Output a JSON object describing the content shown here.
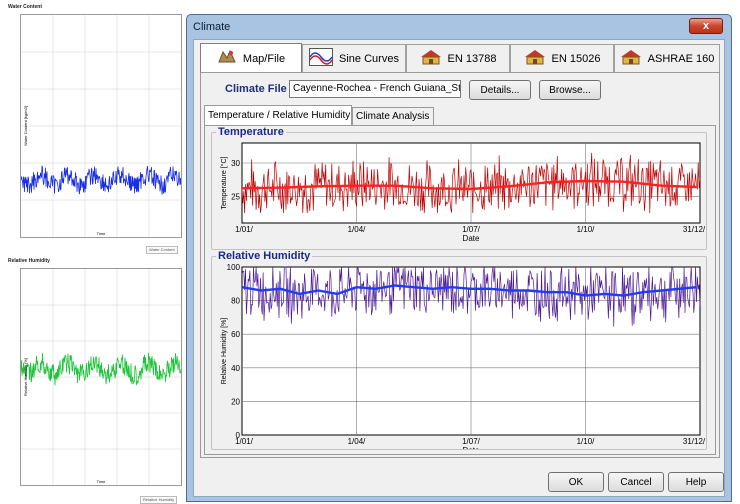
{
  "background_app": {
    "top_panel_title": "Water Content",
    "top_panel_ylabel": "Water Content [kg/m3]",
    "top_panel_xlabel": "Time",
    "top_panel_legend": "Water Content",
    "bottom_panel_title": "Relative Humidity",
    "bottom_panel_ylabel": "Relative Humidity [%]",
    "bottom_panel_xlabel": "Time",
    "bottom_panel_legend": "Relative Humidity",
    "colors": {
      "top_series": "#1a2ee6",
      "bottom_series": "#1ec43a"
    }
  },
  "dialog": {
    "title": "Climate",
    "close_label": "x",
    "tabs": [
      {
        "label": "Map/File",
        "icon": "map-icon",
        "active": true
      },
      {
        "label": "Sine Curves",
        "icon": "sine-curves-icon",
        "active": false
      },
      {
        "label": "EN 13788",
        "icon": "house-icon",
        "active": false
      },
      {
        "label": "EN 15026",
        "icon": "house-icon",
        "active": false
      },
      {
        "label": "ASHRAE 160",
        "icon": "house-icon",
        "active": false
      }
    ],
    "climate_file": {
      "label": "Climate File",
      "value": "Cayenne-Rochea - French Guiana_Stati",
      "details_button": "Details...",
      "browse_button": "Browse..."
    },
    "subtabs": [
      {
        "label": "Temperature / Relative Humidity",
        "active": true
      },
      {
        "label": "Climate Analysis",
        "active": false
      }
    ],
    "ok_button": "OK",
    "cancel_button": "Cancel",
    "help_button": "Help"
  },
  "chart_data": [
    {
      "type": "line",
      "title": "Temperature",
      "xlabel": "Date",
      "ylabel": "Temperature [°C]",
      "x_ticks": [
        "1/01/",
        "1/04/",
        "1/07/",
        "1/10/",
        "31/12/"
      ],
      "y_ticks": [
        25,
        30
      ],
      "ylim": [
        21,
        33
      ],
      "grid": true,
      "series": [
        {
          "kind": "hourly",
          "color": "#c00000",
          "min": 22.5,
          "max": 32.5
        },
        {
          "kind": "running_mean",
          "color": "#ff2020",
          "x_month": [
            1,
            2,
            3,
            4,
            5,
            6,
            7,
            8,
            9,
            10,
            11,
            12,
            12.9
          ],
          "values": [
            26.2,
            26.3,
            26.5,
            26.6,
            26.6,
            26.2,
            26.1,
            26.5,
            27.1,
            27.3,
            27.2,
            26.6,
            26.4
          ]
        }
      ]
    },
    {
      "type": "line",
      "title": "Relative Humidity",
      "xlabel": "Date",
      "ylabel": "Relative Humidity [%]",
      "x_ticks": [
        "1/01/",
        "1/04/",
        "1/07/",
        "1/10/",
        "31/12/"
      ],
      "y_ticks": [
        0,
        20,
        40,
        60,
        80,
        100
      ],
      "ylim": [
        0,
        100
      ],
      "grid": true,
      "series": [
        {
          "kind": "hourly",
          "color": "#4b1a96",
          "min": 58,
          "max": 100
        },
        {
          "kind": "running_mean",
          "color": "#1f3cf5",
          "x_month": [
            1,
            1.5,
            2,
            2.5,
            3,
            3.5,
            4,
            4.5,
            5,
            5.5,
            6,
            6.5,
            7,
            7.5,
            8,
            8.5,
            9,
            9.5,
            10,
            10.5,
            11,
            11.5,
            12,
            12.9
          ],
          "values": [
            88,
            86,
            87,
            84,
            86,
            84,
            88,
            87,
            89,
            88,
            87,
            88,
            87,
            87,
            86,
            86,
            85,
            85,
            83,
            84,
            83,
            85,
            86,
            88
          ]
        }
      ]
    }
  ]
}
